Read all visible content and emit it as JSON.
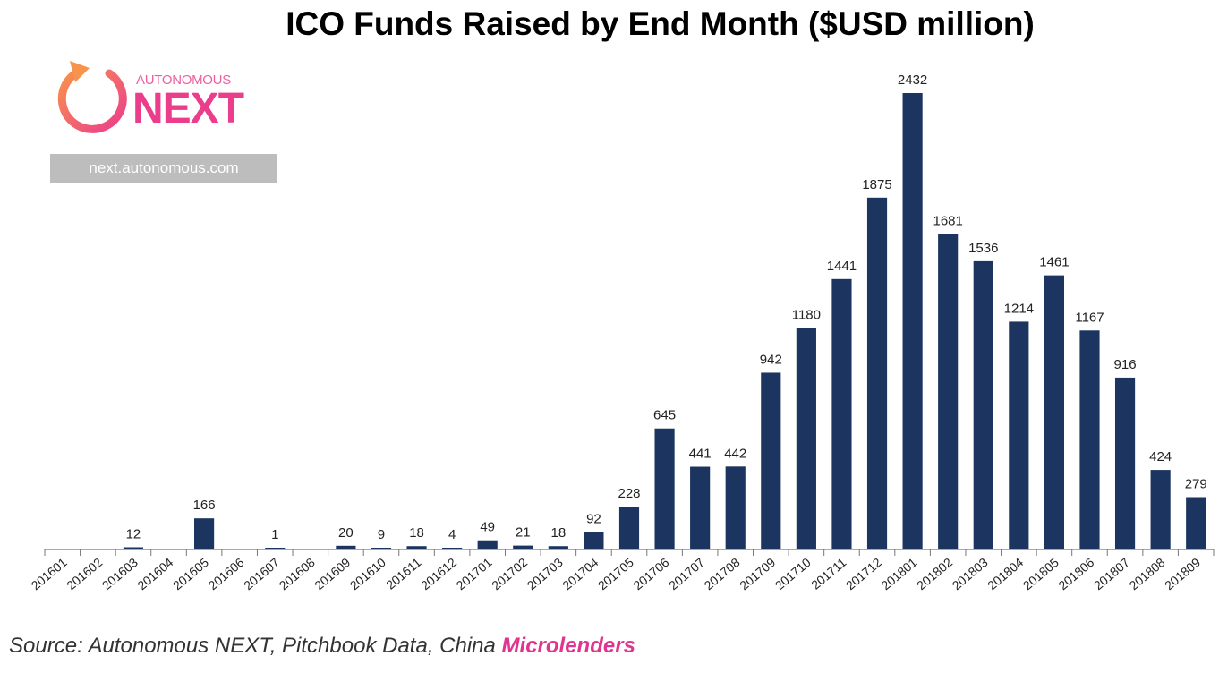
{
  "chart_data": {
    "type": "bar",
    "title": "ICO Funds Raised by End Month ($USD million)",
    "xlabel": "",
    "ylabel": "",
    "ylim": [
      0,
      2432
    ],
    "grid": false,
    "legend": "none",
    "bar_color": "#1b3560",
    "categories": [
      "201601",
      "201602",
      "201603",
      "201604",
      "201605",
      "201606",
      "201607",
      "201608",
      "201609",
      "201610",
      "201611",
      "201612",
      "201701",
      "201702",
      "201703",
      "201704",
      "201705",
      "201706",
      "201707",
      "201708",
      "201709",
      "201710",
      "201711",
      "201712",
      "201801",
      "201802",
      "201803",
      "201804",
      "201805",
      "201806",
      "201807",
      "201808",
      "201809"
    ],
    "values": [
      0,
      0,
      12,
      0,
      166,
      0,
      1,
      0,
      20,
      9,
      18,
      4,
      49,
      21,
      18,
      92,
      228,
      645,
      441,
      442,
      942,
      1180,
      1441,
      1875,
      2432,
      1681,
      1536,
      1214,
      1461,
      1167,
      916,
      424,
      279
    ],
    "data_labels": [
      "",
      "",
      "12",
      "",
      "166",
      "",
      "1",
      "",
      "20",
      "9",
      "18",
      "4",
      "49",
      "21",
      "18",
      "92",
      "228",
      "645",
      "441",
      "442",
      "942",
      "1180",
      "1441",
      "1875",
      "2432",
      "1681",
      "1536",
      "1214",
      "1461",
      "1167",
      "916",
      "424",
      "279"
    ]
  },
  "logo": {
    "brand_top": "AUTONOMOUS",
    "brand_main": "NEXT",
    "url": "next.autonomous.com",
    "colors": {
      "orange": "#f7934c",
      "pink": "#ec3d8c"
    }
  },
  "source": {
    "prefix": "Source: Autonomous NEXT, Pitchbook Data, China ",
    "highlight": "Microlenders",
    "highlight_color": "#e0348f"
  }
}
